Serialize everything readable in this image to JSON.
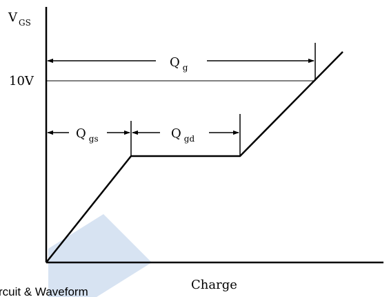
{
  "axes": {
    "y_label_main": "V",
    "y_label_sub": "GS",
    "x_label": "Charge",
    "y_tick": "10V"
  },
  "spans": {
    "qg": {
      "main": "Q",
      "sub": "g"
    },
    "qgs": {
      "main": "Q",
      "sub": "gs"
    },
    "qgd": {
      "main": "Q",
      "sub": "gd"
    }
  },
  "watermark": {
    "text": "rcuit & Waveform",
    "color": "#c9d9ee"
  },
  "colors": {
    "ink": "#000000",
    "background": "#ffffff"
  }
}
